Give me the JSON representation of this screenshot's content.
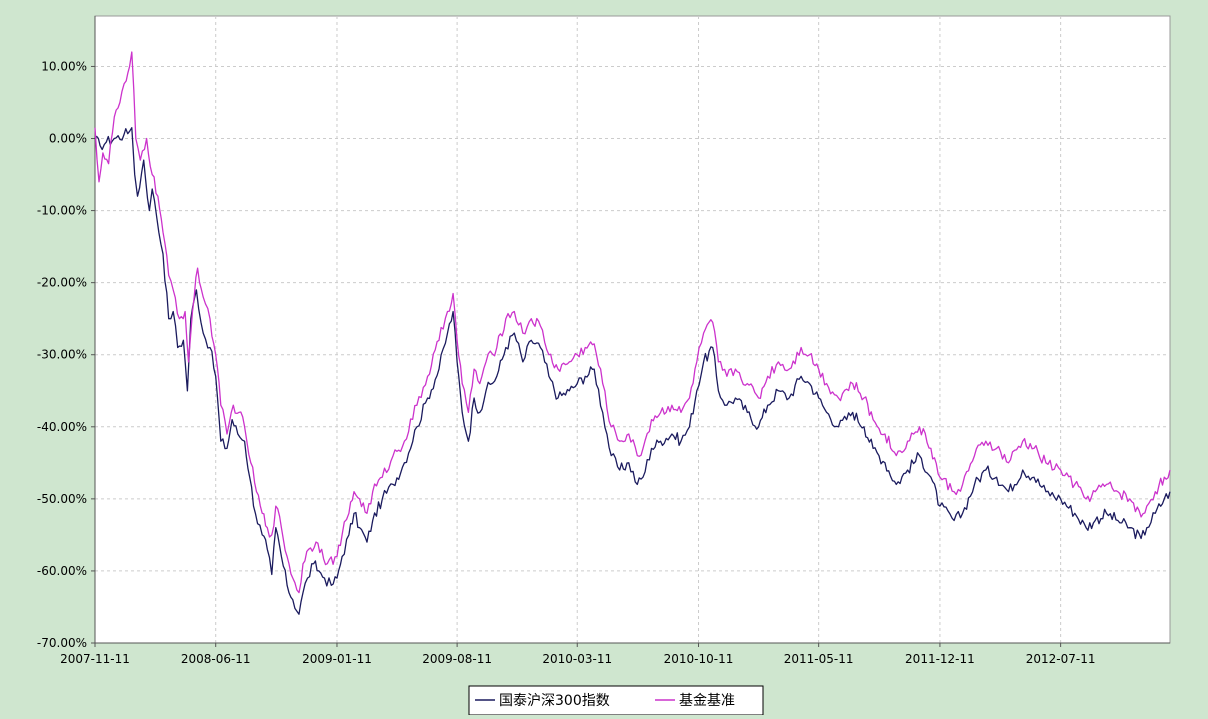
{
  "chart_data": {
    "type": "line",
    "title": "",
    "xlabel": "",
    "ylabel": "",
    "x_ticks": [
      "2007-11-11",
      "2008-06-11",
      "2009-01-11",
      "2009-08-11",
      "2010-03-11",
      "2010-10-11",
      "2011-05-11",
      "2011-12-11",
      "2012-07-11"
    ],
    "x_range": [
      "2007-11-11",
      "2013-01-20"
    ],
    "y_ticks": [
      "10.00%",
      "0.00%",
      "-10.00%",
      "-20.00%",
      "-30.00%",
      "-40.00%",
      "-50.00%",
      "-60.00%",
      "-70.00%"
    ],
    "y_range": [
      -70,
      17
    ],
    "y_unit": "%",
    "grid": "dashed",
    "legend_position": "bottom",
    "background_color": "#cfe6cf",
    "plot_background": "#ffffff",
    "grid_color": "#cccccc",
    "series": [
      {
        "name": "国泰沪深300指数",
        "color": "#1b1b5e",
        "points": [
          [
            "2007-11-11",
            0.0
          ],
          [
            "2007-11-20",
            -1.0
          ],
          [
            "2007-12-01",
            -0.5
          ],
          [
            "2007-12-15",
            0.0
          ],
          [
            "2008-01-01",
            0.5
          ],
          [
            "2008-01-11",
            1.0
          ],
          [
            "2008-01-15",
            1.5
          ],
          [
            "2008-01-20",
            -5.0
          ],
          [
            "2008-01-25",
            -8.0
          ],
          [
            "2008-02-05",
            -3.0
          ],
          [
            "2008-02-15",
            -10.0
          ],
          [
            "2008-02-20",
            -7.0
          ],
          [
            "2008-02-28",
            -11.0
          ],
          [
            "2008-03-10",
            -16.0
          ],
          [
            "2008-03-20",
            -25.0
          ],
          [
            "2008-03-28",
            -24.0
          ],
          [
            "2008-04-05",
            -29.0
          ],
          [
            "2008-04-15",
            -28.0
          ],
          [
            "2008-04-22",
            -35.0
          ],
          [
            "2008-04-28",
            -25.0
          ],
          [
            "2008-05-08",
            -21.0
          ],
          [
            "2008-05-20",
            -27.0
          ],
          [
            "2008-06-01",
            -29.0
          ],
          [
            "2008-06-11",
            -33.0
          ],
          [
            "2008-06-20",
            -42.0
          ],
          [
            "2008-07-01",
            -43.0
          ],
          [
            "2008-07-10",
            -39.0
          ],
          [
            "2008-07-20",
            -41.0
          ],
          [
            "2008-08-01",
            -42.0
          ],
          [
            "2008-08-10",
            -47.0
          ],
          [
            "2008-08-20",
            -52.0
          ],
          [
            "2008-09-01",
            -55.0
          ],
          [
            "2008-09-10",
            -57.0
          ],
          [
            "2008-09-18",
            -60.5
          ],
          [
            "2008-09-25",
            -54.0
          ],
          [
            "2008-10-05",
            -58.0
          ],
          [
            "2008-10-15",
            -62.0
          ],
          [
            "2008-10-25",
            -64.0
          ],
          [
            "2008-11-05",
            -66.0
          ],
          [
            "2008-11-12",
            -63.0
          ],
          [
            "2008-11-20",
            -61.0
          ],
          [
            "2008-12-01",
            -59.0
          ],
          [
            "2008-12-10",
            -60.0
          ],
          [
            "2008-12-20",
            -61.0
          ],
          [
            "2009-01-01",
            -62.0
          ],
          [
            "2009-01-11",
            -61.0
          ],
          [
            "2009-01-20",
            -58.0
          ],
          [
            "2009-02-01",
            -55.0
          ],
          [
            "2009-02-10",
            -52.0
          ],
          [
            "2009-02-20",
            -54.0
          ],
          [
            "2009-03-05",
            -56.0
          ],
          [
            "2009-03-15",
            -53.0
          ],
          [
            "2009-04-01",
            -50.0
          ],
          [
            "2009-04-20",
            -48.0
          ],
          [
            "2009-05-10",
            -45.0
          ],
          [
            "2009-06-01",
            -40.0
          ],
          [
            "2009-06-20",
            -36.0
          ],
          [
            "2009-07-10",
            -32.0
          ],
          [
            "2009-07-25",
            -27.0
          ],
          [
            "2009-08-04",
            -24.0
          ],
          [
            "2009-08-11",
            -31.0
          ],
          [
            "2009-08-20",
            -38.0
          ],
          [
            "2009-08-31",
            -42.0
          ],
          [
            "2009-09-10",
            -36.0
          ],
          [
            "2009-09-20",
            -38.0
          ],
          [
            "2009-10-01",
            -35.0
          ],
          [
            "2009-10-20",
            -33.0
          ],
          [
            "2009-11-05",
            -29.0
          ],
          [
            "2009-11-20",
            -27.0
          ],
          [
            "2009-12-05",
            -31.0
          ],
          [
            "2009-12-20",
            -28.0
          ],
          [
            "2010-01-05",
            -29.0
          ],
          [
            "2010-01-20",
            -33.0
          ],
          [
            "2010-02-05",
            -36.0
          ],
          [
            "2010-02-25",
            -35.0
          ],
          [
            "2010-03-11",
            -34.0
          ],
          [
            "2010-03-25",
            -33.0
          ],
          [
            "2010-04-10",
            -32.0
          ],
          [
            "2010-04-25",
            -38.0
          ],
          [
            "2010-05-10",
            -44.0
          ],
          [
            "2010-05-25",
            -46.0
          ],
          [
            "2010-06-10",
            -45.0
          ],
          [
            "2010-06-25",
            -48.0
          ],
          [
            "2010-07-05",
            -47.0
          ],
          [
            "2010-07-20",
            -43.0
          ],
          [
            "2010-08-05",
            -42.0
          ],
          [
            "2010-08-25",
            -41.0
          ],
          [
            "2010-09-10",
            -42.0
          ],
          [
            "2010-09-25",
            -40.0
          ],
          [
            "2010-10-08",
            -35.0
          ],
          [
            "2010-10-20",
            -31.0
          ],
          [
            "2010-11-05",
            -29.0
          ],
          [
            "2010-11-15",
            -35.0
          ],
          [
            "2010-11-30",
            -37.0
          ],
          [
            "2010-12-15",
            -36.0
          ],
          [
            "2011-01-05",
            -38.0
          ],
          [
            "2011-01-25",
            -40.0
          ],
          [
            "2011-02-10",
            -37.0
          ],
          [
            "2011-03-01",
            -35.0
          ],
          [
            "2011-03-20",
            -36.0
          ],
          [
            "2011-04-10",
            -33.0
          ],
          [
            "2011-04-25",
            -34.0
          ],
          [
            "2011-05-11",
            -36.0
          ],
          [
            "2011-05-25",
            -38.0
          ],
          [
            "2011-06-15",
            -40.0
          ],
          [
            "2011-07-10",
            -38.0
          ],
          [
            "2011-07-30",
            -40.0
          ],
          [
            "2011-08-15",
            -43.0
          ],
          [
            "2011-09-05",
            -45.0
          ],
          [
            "2011-09-25",
            -48.0
          ],
          [
            "2011-10-15",
            -46.0
          ],
          [
            "2011-11-05",
            -44.0
          ],
          [
            "2011-11-25",
            -47.0
          ],
          [
            "2011-12-11",
            -51.0
          ],
          [
            "2012-01-05",
            -53.0
          ],
          [
            "2012-01-20",
            -52.0
          ],
          [
            "2012-02-10",
            -48.0
          ],
          [
            "2012-03-01",
            -46.0
          ],
          [
            "2012-03-20",
            -47.0
          ],
          [
            "2012-04-10",
            -49.0
          ],
          [
            "2012-05-05",
            -46.0
          ],
          [
            "2012-05-25",
            -47.0
          ],
          [
            "2012-06-15",
            -49.0
          ],
          [
            "2012-07-11",
            -50.0
          ],
          [
            "2012-08-05",
            -52.0
          ],
          [
            "2012-08-25",
            -54.0
          ],
          [
            "2012-09-10",
            -53.0
          ],
          [
            "2012-09-30",
            -52.0
          ],
          [
            "2012-10-20",
            -53.0
          ],
          [
            "2012-11-10",
            -54.0
          ],
          [
            "2012-11-30",
            -55.5
          ],
          [
            "2012-12-10",
            -54.0
          ],
          [
            "2012-12-25",
            -52.0
          ],
          [
            "2013-01-10",
            -50.0
          ],
          [
            "2013-01-20",
            -49.0
          ]
        ]
      },
      {
        "name": "基金基准",
        "color": "#cc33cc",
        "points": [
          [
            "2007-11-11",
            1.5
          ],
          [
            "2007-11-18",
            -6.0
          ],
          [
            "2007-11-25",
            -2.0
          ],
          [
            "2007-12-05",
            -3.5
          ],
          [
            "2007-12-15",
            3.0
          ],
          [
            "2007-12-25",
            5.0
          ],
          [
            "2008-01-05",
            8.0
          ],
          [
            "2008-01-11",
            10.0
          ],
          [
            "2008-01-15",
            12.0
          ],
          [
            "2008-01-22",
            0.0
          ],
          [
            "2008-01-30",
            -3.0
          ],
          [
            "2008-02-10",
            0.0
          ],
          [
            "2008-02-20",
            -5.0
          ],
          [
            "2008-03-01",
            -8.0
          ],
          [
            "2008-03-10",
            -13.0
          ],
          [
            "2008-03-20",
            -19.0
          ],
          [
            "2008-03-28",
            -21.0
          ],
          [
            "2008-04-08",
            -25.0
          ],
          [
            "2008-04-18",
            -24.0
          ],
          [
            "2008-04-24",
            -31.0
          ],
          [
            "2008-05-01",
            -24.0
          ],
          [
            "2008-05-10",
            -18.0
          ],
          [
            "2008-05-20",
            -22.0
          ],
          [
            "2008-06-01",
            -25.0
          ],
          [
            "2008-06-11",
            -30.0
          ],
          [
            "2008-06-20",
            -37.0
          ],
          [
            "2008-07-01",
            -41.0
          ],
          [
            "2008-07-12",
            -37.0
          ],
          [
            "2008-07-22",
            -38.0
          ],
          [
            "2008-08-01",
            -40.0
          ],
          [
            "2008-08-12",
            -45.0
          ],
          [
            "2008-08-22",
            -49.0
          ],
          [
            "2008-09-01",
            -52.0
          ],
          [
            "2008-09-10",
            -54.0
          ],
          [
            "2008-09-18",
            -55.0
          ],
          [
            "2008-09-25",
            -51.0
          ],
          [
            "2008-10-05",
            -54.0
          ],
          [
            "2008-10-15",
            -58.0
          ],
          [
            "2008-10-25",
            -61.0
          ],
          [
            "2008-11-05",
            -63.0
          ],
          [
            "2008-11-12",
            -59.0
          ],
          [
            "2008-11-22",
            -57.0
          ],
          [
            "2008-12-05",
            -56.0
          ],
          [
            "2008-12-15",
            -57.0
          ],
          [
            "2008-12-25",
            -59.0
          ],
          [
            "2009-01-11",
            -58.0
          ],
          [
            "2009-01-20",
            -55.0
          ],
          [
            "2009-02-01",
            -52.0
          ],
          [
            "2009-02-10",
            -49.0
          ],
          [
            "2009-02-20",
            -50.0
          ],
          [
            "2009-03-05",
            -52.0
          ],
          [
            "2009-03-15",
            -49.0
          ],
          [
            "2009-04-01",
            -47.0
          ],
          [
            "2009-04-20",
            -44.0
          ],
          [
            "2009-05-10",
            -42.0
          ],
          [
            "2009-06-01",
            -37.0
          ],
          [
            "2009-06-20",
            -33.0
          ],
          [
            "2009-07-10",
            -28.0
          ],
          [
            "2009-07-25",
            -24.0
          ],
          [
            "2009-08-04",
            -21.5
          ],
          [
            "2009-08-11",
            -28.0
          ],
          [
            "2009-08-20",
            -34.0
          ],
          [
            "2009-08-31",
            -38.0
          ],
          [
            "2009-09-10",
            -32.0
          ],
          [
            "2009-09-20",
            -34.0
          ],
          [
            "2009-10-01",
            -31.0
          ],
          [
            "2009-10-20",
            -29.0
          ],
          [
            "2009-11-05",
            -25.0
          ],
          [
            "2009-11-20",
            -24.0
          ],
          [
            "2009-12-05",
            -27.0
          ],
          [
            "2009-12-20",
            -25.0
          ],
          [
            "2010-01-05",
            -26.0
          ],
          [
            "2010-01-20",
            -30.0
          ],
          [
            "2010-02-05",
            -32.0
          ],
          [
            "2010-02-25",
            -31.0
          ],
          [
            "2010-03-11",
            -30.0
          ],
          [
            "2010-03-25",
            -29.0
          ],
          [
            "2010-04-10",
            -28.5
          ],
          [
            "2010-04-25",
            -34.0
          ],
          [
            "2010-05-10",
            -40.0
          ],
          [
            "2010-05-25",
            -42.0
          ],
          [
            "2010-06-10",
            -41.0
          ],
          [
            "2010-06-25",
            -44.0
          ],
          [
            "2010-07-05",
            -43.0
          ],
          [
            "2010-07-20",
            -39.0
          ],
          [
            "2010-08-05",
            -38.0
          ],
          [
            "2010-08-25",
            -37.0
          ],
          [
            "2010-09-10",
            -38.0
          ],
          [
            "2010-09-25",
            -36.0
          ],
          [
            "2010-10-08",
            -31.0
          ],
          [
            "2010-10-20",
            -27.0
          ],
          [
            "2010-11-05",
            -25.5
          ],
          [
            "2010-11-15",
            -31.0
          ],
          [
            "2010-11-30",
            -33.0
          ],
          [
            "2010-12-15",
            -32.0
          ],
          [
            "2011-01-05",
            -34.0
          ],
          [
            "2011-01-25",
            -36.0
          ],
          [
            "2011-02-10",
            -33.0
          ],
          [
            "2011-03-01",
            -31.0
          ],
          [
            "2011-03-20",
            -32.0
          ],
          [
            "2011-04-10",
            -29.0
          ],
          [
            "2011-04-25",
            -30.0
          ],
          [
            "2011-05-11",
            -32.0
          ],
          [
            "2011-05-25",
            -34.0
          ],
          [
            "2011-06-15",
            -36.0
          ],
          [
            "2011-07-10",
            -34.0
          ],
          [
            "2011-07-30",
            -36.0
          ],
          [
            "2011-08-15",
            -39.0
          ],
          [
            "2011-09-05",
            -41.0
          ],
          [
            "2011-09-25",
            -44.0
          ],
          [
            "2011-10-15",
            -42.0
          ],
          [
            "2011-11-05",
            -40.0
          ],
          [
            "2011-11-25",
            -43.0
          ],
          [
            "2011-12-11",
            -47.0
          ],
          [
            "2012-01-05",
            -49.0
          ],
          [
            "2012-01-20",
            -48.0
          ],
          [
            "2012-02-10",
            -44.0
          ],
          [
            "2012-03-01",
            -42.0
          ],
          [
            "2012-03-20",
            -43.0
          ],
          [
            "2012-04-10",
            -45.0
          ],
          [
            "2012-05-05",
            -42.0
          ],
          [
            "2012-05-25",
            -43.0
          ],
          [
            "2012-06-15",
            -45.0
          ],
          [
            "2012-07-11",
            -46.0
          ],
          [
            "2012-08-05",
            -48.0
          ],
          [
            "2012-08-25",
            -50.0
          ],
          [
            "2012-09-10",
            -49.0
          ],
          [
            "2012-09-30",
            -48.0
          ],
          [
            "2012-10-20",
            -49.0
          ],
          [
            "2012-11-10",
            -50.0
          ],
          [
            "2012-11-30",
            -52.5
          ],
          [
            "2012-12-10",
            -51.0
          ],
          [
            "2012-12-25",
            -49.0
          ],
          [
            "2013-01-10",
            -47.0
          ],
          [
            "2013-01-20",
            -46.0
          ]
        ]
      }
    ]
  }
}
